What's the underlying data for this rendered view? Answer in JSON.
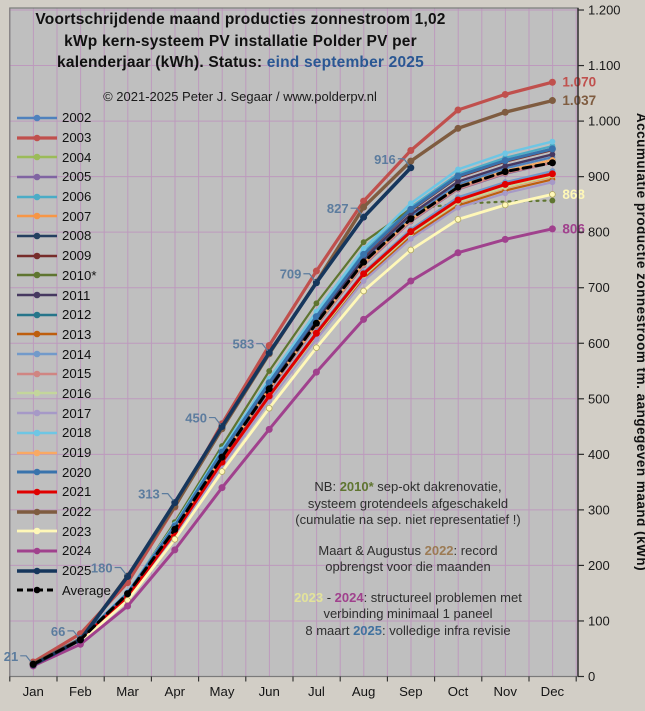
{
  "title": {
    "line1": "Voortschrijdende  maand producties  zonnestroom 1,02",
    "line2": "kWp kern-systeem  PV installatie  Polder PV per",
    "line3_black": "kalenderjaar (kWh). Status: ",
    "line3_blue": "eind september 2025"
  },
  "copyright": "© 2021-2025  Peter J. Segaar / www.polderpv.nl",
  "colors": {
    "outer_bg": "#D2CEC6",
    "plot_bg": "#BFBFBF",
    "grid": "#BD9ABD",
    "plot_border": "#7a7a7a",
    "axis": "#2b2b2b",
    "title_blue": "#2A5793",
    "value_label": "#5C7C9E"
  },
  "annotations": [
    {
      "gap_before": false,
      "segments": [
        {
          "text": "NB:  ",
          "color": null
        },
        {
          "text": "2010*",
          "color": "#5F7530"
        },
        {
          "text": "  sep-okt dakrenovatie,",
          "color": null
        }
      ]
    },
    {
      "gap_before": false,
      "segments": [
        {
          "text": "systeem grotendeels afgeschakeld",
          "color": null
        }
      ]
    },
    {
      "gap_before": false,
      "segments": [
        {
          "text": "(cumulatie na sep. niet representatief !)",
          "color": null
        }
      ]
    },
    {
      "gap_before": true,
      "segments": [
        {
          "text": "Maart & Augustus ",
          "color": null
        },
        {
          "text": "2022",
          "color": "#9C7B54"
        },
        {
          "text": ": record",
          "color": null
        }
      ]
    },
    {
      "gap_before": false,
      "segments": [
        {
          "text": "opbrengst voor die maanden",
          "color": null
        }
      ]
    },
    {
      "gap_before": true,
      "segments": [
        {
          "text": "2023",
          "color": "#E3E39A"
        },
        {
          "text": " - ",
          "color": null
        },
        {
          "text": "2024",
          "color": "#A0418D"
        },
        {
          "text": ": structureel problemen  met",
          "color": null
        }
      ]
    },
    {
      "gap_before": false,
      "segments": [
        {
          "text": "verbinding  minimaal  1 paneel",
          "color": null
        }
      ]
    },
    {
      "gap_before": false,
      "segments": [
        {
          "text": "8 maart ",
          "color": null
        },
        {
          "text": "2025",
          "color": "#41729F"
        },
        {
          "text": ": volledige  infra revisie",
          "color": null
        }
      ]
    }
  ],
  "chart_data": {
    "type": "line",
    "x_categories": [
      "Jan",
      "Feb",
      "Mar",
      "Apr",
      "May",
      "Jun",
      "Jul",
      "Aug",
      "Sep",
      "Oct",
      "Nov",
      "Dec"
    ],
    "ylim": [
      0,
      1200
    ],
    "grid": "on",
    "legend_position": "left",
    "y_axis_title": "Accumulatie productie zonnestroom tm. aangegeven maand (kWh)",
    "y_ticks": [
      {
        "v": 1200,
        "label": "1.200"
      },
      {
        "v": 1100,
        "label": "1.100"
      },
      {
        "v": 1000,
        "label": "1.000"
      },
      {
        "v": 900,
        "label": "900"
      },
      {
        "v": 800,
        "label": "800"
      },
      {
        "v": 700,
        "label": "700"
      },
      {
        "v": 600,
        "label": "600"
      },
      {
        "v": 500,
        "label": "500"
      },
      {
        "v": 400,
        "label": "400"
      },
      {
        "v": 300,
        "label": "300"
      },
      {
        "v": 200,
        "label": "200"
      },
      {
        "v": 100,
        "label": "100"
      },
      {
        "v": 0,
        "label": "0"
      }
    ],
    "series": [
      {
        "name": "2002",
        "color": "#4F81BD",
        "width": 2.2,
        "values": [
          22,
          67,
          148,
          266,
          397,
          521,
          638,
          748,
          828,
          886,
          915,
          935
        ]
      },
      {
        "name": "2003",
        "color": "#C0504D",
        "width": 3.2,
        "end_label": "1.070",
        "values": [
          26,
          77,
          169,
          305,
          455,
          596,
          730,
          856,
          947,
          1020,
          1048,
          1070
        ]
      },
      {
        "name": "2004",
        "color": "#9BBB59",
        "width": 2.2,
        "values": [
          22,
          67,
          147,
          265,
          395,
          518,
          634,
          744,
          823,
          882,
          910,
          930
        ]
      },
      {
        "name": "2005",
        "color": "#8064A2",
        "width": 2.2,
        "values": [
          22,
          66,
          146,
          264,
          393,
          515,
          631,
          740,
          819,
          877,
          905,
          925
        ]
      },
      {
        "name": "2006",
        "color": "#4BACC6",
        "width": 2.2,
        "values": [
          23,
          69,
          151,
          272,
          406,
          532,
          651,
          764,
          845,
          905,
          934,
          955
        ]
      },
      {
        "name": "2007",
        "color": "#F79646",
        "width": 2.2,
        "values": [
          22,
          65,
          142,
          257,
          383,
          501,
          614,
          720,
          797,
          853,
          880,
          900
        ]
      },
      {
        "name": "2008",
        "color": "#243F60",
        "width": 2.4,
        "values": [
          21,
          66,
          147,
          263,
          392,
          517,
          633,
          742,
          822,
          880,
          909,
          930
        ]
      },
      {
        "name": "2009",
        "color": "#772C2A",
        "width": 2.4,
        "values": [
          23,
          68,
          150,
          270,
          403,
          528,
          647,
          758,
          839,
          899,
          927,
          948
        ]
      },
      {
        "name": "2010*",
        "color": "#5F7530",
        "width": 2.2,
        "dot_from": 8,
        "values": [
          22,
          68,
          150,
          278,
          415,
          550,
          672,
          782,
          842,
          851,
          855,
          857
        ]
      },
      {
        "name": "2011",
        "color": "#463860",
        "width": 2.4,
        "values": [
          23,
          68,
          149,
          268,
          400,
          524,
          641,
          752,
          832,
          891,
          919,
          940
        ]
      },
      {
        "name": "2012",
        "color": "#26758A",
        "width": 2.2,
        "values": [
          22,
          65,
          143,
          258,
          385,
          504,
          617,
          724,
          801,
          858,
          885,
          905
        ]
      },
      {
        "name": "2013",
        "color": "#BE5E0E",
        "width": 2.2,
        "values": [
          21,
          64,
          141,
          255,
          380,
          499,
          610,
          716,
          792,
          848,
          875,
          895
        ]
      },
      {
        "name": "2014",
        "color": "#729ACA",
        "width": 2.2,
        "values": [
          22,
          66,
          144,
          259,
          387,
          507,
          621,
          728,
          805,
          863,
          890,
          910
        ]
      },
      {
        "name": "2015",
        "color": "#D08582",
        "width": 2.2,
        "values": [
          23,
          67,
          147,
          265,
          394,
          516,
          632,
          741,
          820,
          878,
          906,
          925
        ]
      },
      {
        "name": "2016",
        "color": "#C3D69B",
        "width": 2.2,
        "values": [
          22,
          65,
          142,
          256,
          382,
          501,
          614,
          721,
          797,
          854,
          881,
          902
        ]
      },
      {
        "name": "2017",
        "color": "#A699C7",
        "width": 2.2,
        "values": [
          21,
          64,
          141,
          254,
          378,
          496,
          607,
          712,
          788,
          844,
          870,
          890
        ]
      },
      {
        "name": "2018",
        "color": "#6EC6E4",
        "width": 2.4,
        "values": [
          23,
          69,
          152,
          274,
          409,
          536,
          657,
          770,
          852,
          913,
          942,
          963
        ]
      },
      {
        "name": "2019",
        "color": "#F9A963",
        "width": 2.2,
        "values": [
          22,
          67,
          147,
          265,
          395,
          518,
          634,
          744,
          823,
          882,
          910,
          930
        ]
      },
      {
        "name": "2020",
        "color": "#3973AC",
        "width": 3.0,
        "values": [
          23,
          68,
          150,
          271,
          404,
          529,
          648,
          760,
          841,
          901,
          929,
          950
        ]
      },
      {
        "name": "2021",
        "color": "#E00000",
        "width": 3.0,
        "values": [
          22,
          66,
          144,
          259,
          386,
          505,
          618,
          725,
          801,
          858,
          886,
          905
        ]
      },
      {
        "name": "2022",
        "color": "#7F5C40",
        "width": 3.4,
        "end_label": "1.037",
        "values": [
          23,
          67,
          181,
          306,
          446,
          581,
          710,
          845,
          928,
          987,
          1016,
          1037
        ]
      },
      {
        "name": "2023",
        "color": "#FFF8B8",
        "width": 2.8,
        "end_label": "868",
        "values": [
          21,
          62,
          137,
          247,
          369,
          483,
          592,
          694,
          768,
          823,
          849,
          868
        ]
      },
      {
        "name": "2024",
        "color": "#A0418D",
        "width": 3.0,
        "end_label": "806",
        "values": [
          19,
          58,
          127,
          228,
          340,
          445,
          548,
          643,
          712,
          763,
          787,
          806
        ]
      },
      {
        "name": "2025",
        "color": "#16365C",
        "width": 3.6,
        "labeled": true,
        "point_labels": [
          "21",
          "66",
          "180",
          "313",
          "450",
          "583",
          "709",
          "827",
          "916"
        ],
        "values": [
          21,
          66,
          180,
          313,
          450,
          583,
          709,
          827,
          916
        ]
      },
      {
        "name": "Average",
        "color": "#000000",
        "width": 3.0,
        "dash": "8 5",
        "values": [
          22,
          66,
          149,
          265,
          395,
          518,
          636,
          746,
          824,
          881,
          909,
          925
        ]
      }
    ]
  }
}
